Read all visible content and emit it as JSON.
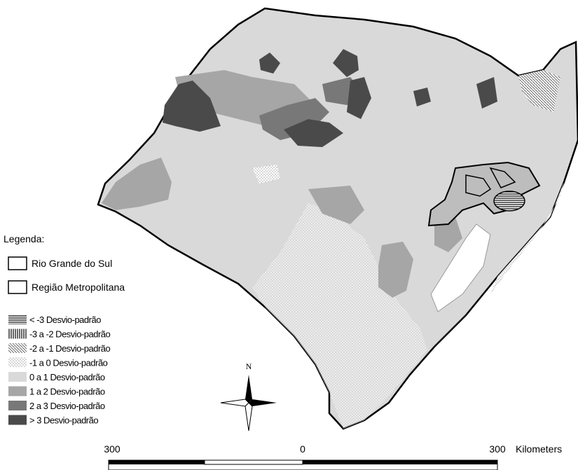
{
  "legend": {
    "title": "Legenda:",
    "outlines": [
      "Rio Grande do Sul",
      "Região Metropolitana"
    ],
    "classes": [
      "< -3 Desvio-padrão",
      "-3 a -2 Desvio-padrão",
      "-2 a -1 Desvio-padrão",
      "-1 a 0 Desvio-padrão",
      "0 a 1 Desvio-padrão",
      "1 a 2 Desvio-padrão",
      "2 a 3 Desvio-padrão",
      "> 3 Desvio-padrão"
    ]
  },
  "compass": {
    "label": "N"
  },
  "scale": {
    "labels": [
      "300",
      "0",
      "300"
    ],
    "unit": "Kilometers"
  }
}
